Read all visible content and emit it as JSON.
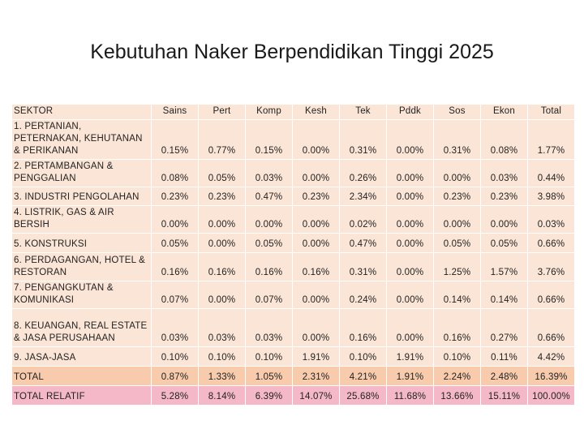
{
  "title": "Kebutuhan Naker Berpendidikan Tinggi 2025",
  "table": {
    "header": [
      "SEKTOR",
      "Sains",
      "Pert",
      "Komp",
      "Kesh",
      "Tek",
      "Pddk",
      "Sos",
      "Ekon",
      "Total"
    ],
    "rows": [
      {
        "sector": "1. PERTANIAN, PETERNAKAN, KEHUTANAN & PERIKANAN",
        "values": [
          "0.15%",
          "0.77%",
          "0.15%",
          "0.00%",
          "0.31%",
          "0.00%",
          "0.31%",
          "0.08%",
          "1.77%"
        ]
      },
      {
        "sector": "2. PERTAMBANGAN & PENGGALIAN",
        "values": [
          "0.08%",
          "0.05%",
          "0.03%",
          "0.00%",
          "0.26%",
          "0.00%",
          "0.00%",
          "0.03%",
          "0.44%"
        ]
      },
      {
        "sector": "3. INDUSTRI PENGOLAHAN",
        "values": [
          "0.23%",
          "0.23%",
          "0.47%",
          "0.23%",
          "2.34%",
          "0.00%",
          "0.23%",
          "0.23%",
          "3.98%"
        ]
      },
      {
        "sector": "4. LISTRIK, GAS & AIR BERSIH",
        "values": [
          "0.00%",
          "0.00%",
          "0.00%",
          "0.00%",
          "0.02%",
          "0.00%",
          "0.00%",
          "0.00%",
          "0.03%"
        ]
      },
      {
        "sector": "5. KONSTRUKSI",
        "values": [
          "0.05%",
          "0.00%",
          "0.05%",
          "0.00%",
          "0.47%",
          "0.00%",
          "0.05%",
          "0.05%",
          "0.66%"
        ]
      },
      {
        "sector": "6. PERDAGANGAN, HOTEL & RESTORAN",
        "values": [
          "0.16%",
          "0.16%",
          "0.16%",
          "0.16%",
          "0.31%",
          "0.00%",
          "1.25%",
          "1.57%",
          "3.76%"
        ]
      },
      {
        "sector": "7. PENGANGKUTAN & KOMUNIKASI",
        "values": [
          "0.07%",
          "0.00%",
          "0.07%",
          "0.00%",
          "0.24%",
          "0.00%",
          "0.14%",
          "0.14%",
          "0.66%"
        ]
      },
      {
        "sector": "8.  KEUANGAN, REAL ESTATE & JASA PERUSAHAAN",
        "values": [
          "0.03%",
          "0.03%",
          "0.03%",
          "0.00%",
          "0.16%",
          "0.00%",
          "0.16%",
          "0.27%",
          "0.66%"
        ]
      },
      {
        "sector": "9. JASA-JASA",
        "values": [
          "0.10%",
          "0.10%",
          "0.10%",
          "1.91%",
          "0.10%",
          "1.91%",
          "0.10%",
          "0.11%",
          "4.42%"
        ]
      }
    ],
    "total": {
      "sector": "TOTAL",
      "values": [
        "0.87%",
        "1.33%",
        "1.05%",
        "2.31%",
        "4.21%",
        "1.91%",
        "2.24%",
        "2.48%",
        "16.39%"
      ]
    },
    "relative": {
      "sector": "TOTAL RELATIF",
      "values": [
        "5.28%",
        "8.14%",
        "6.39%",
        "14.07%",
        "25.68%",
        "11.68%",
        "13.66%",
        "15.11%",
        "100.00%"
      ]
    }
  }
}
